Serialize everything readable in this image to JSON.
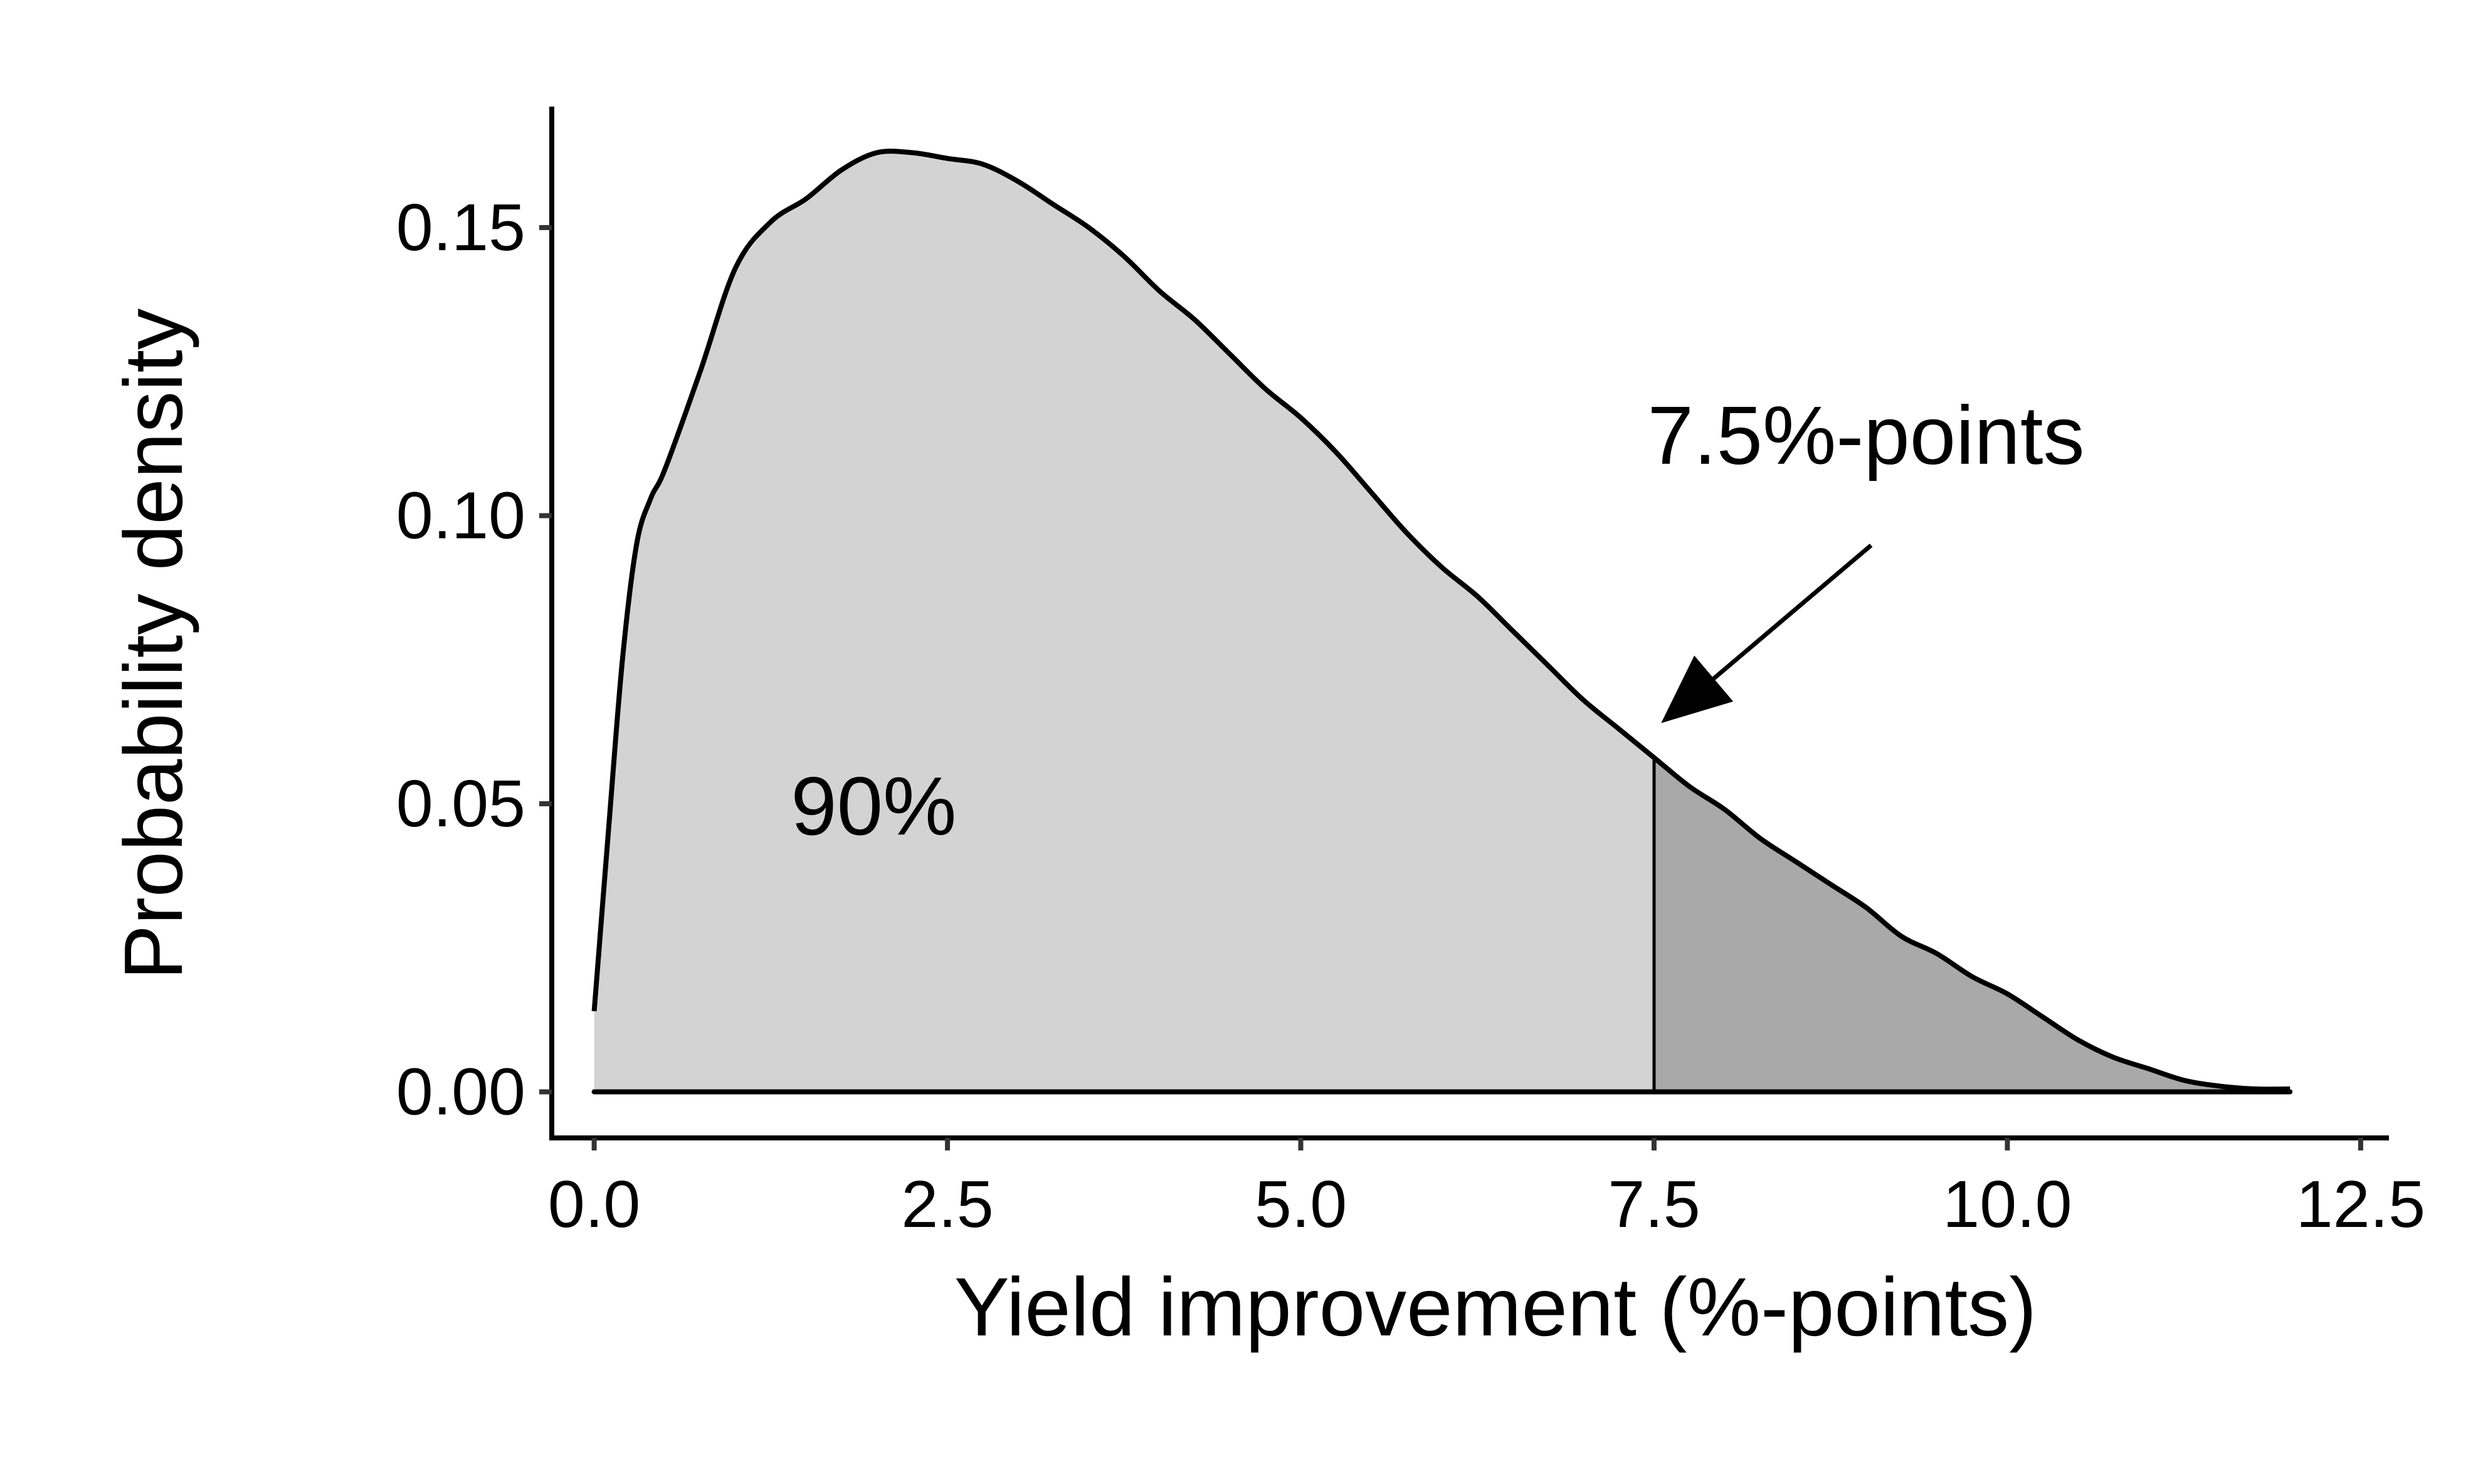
{
  "chart_data": {
    "type": "area",
    "xlabel": "Yield improvement (%-points)",
    "ylabel": "Probability density",
    "xlim": [
      -0.3,
      12.7
    ],
    "ylim": [
      -0.008,
      0.171
    ],
    "xticks": [
      0.0,
      2.5,
      5.0,
      7.5,
      10.0,
      12.5
    ],
    "xtick_labels": [
      "0.0",
      "2.5",
      "5.0",
      "7.5",
      "10.0",
      "12.5"
    ],
    "yticks": [
      0.0,
      0.05,
      0.1,
      0.15
    ],
    "ytick_labels": [
      "0.00",
      "0.05",
      "0.10",
      "0.15"
    ],
    "grid": false,
    "threshold": 7.5,
    "series": [
      {
        "x": [
          0.0,
          0.1,
          0.2,
          0.3,
          0.4,
          0.5,
          0.75,
          1.0,
          1.25,
          1.5,
          1.75,
          2.0,
          2.25,
          2.5,
          2.75,
          3.0,
          3.25,
          3.5,
          3.75,
          4.0,
          4.25,
          4.5,
          4.75,
          5.0,
          5.25,
          5.5,
          5.75,
          6.0,
          6.25,
          6.5,
          6.75,
          7.0,
          7.25,
          7.5,
          7.75,
          8.0,
          8.25,
          8.5,
          8.75,
          9.0,
          9.25,
          9.5,
          9.75,
          10.0,
          10.25,
          10.5,
          10.75,
          11.0,
          11.25,
          11.5,
          11.75,
          12.0
        ],
        "y": [
          0.014,
          0.045,
          0.075,
          0.095,
          0.103,
          0.108,
          0.125,
          0.143,
          0.151,
          0.155,
          0.16,
          0.163,
          0.163,
          0.162,
          0.161,
          0.158,
          0.154,
          0.15,
          0.145,
          0.139,
          0.134,
          0.128,
          0.122,
          0.117,
          0.111,
          0.104,
          0.097,
          0.091,
          0.086,
          0.08,
          0.074,
          0.068,
          0.063,
          0.058,
          0.053,
          0.049,
          0.044,
          0.04,
          0.036,
          0.032,
          0.027,
          0.024,
          0.02,
          0.017,
          0.013,
          0.009,
          0.006,
          0.004,
          0.002,
          0.001,
          0.0005,
          0.0005
        ]
      }
    ],
    "regions": [
      {
        "range": [
          0.0,
          7.5
        ],
        "label": "90%",
        "color": "#d3d3d3"
      },
      {
        "range": [
          7.5,
          12.0
        ],
        "color": "#a9a9a9"
      }
    ],
    "annotations": [
      {
        "text": "7.5%-points",
        "x": 9.0,
        "y": 0.109,
        "arrow_to": [
          7.55,
          0.064
        ]
      },
      {
        "text": "90%",
        "x": 2.0,
        "y": 0.049
      }
    ]
  }
}
